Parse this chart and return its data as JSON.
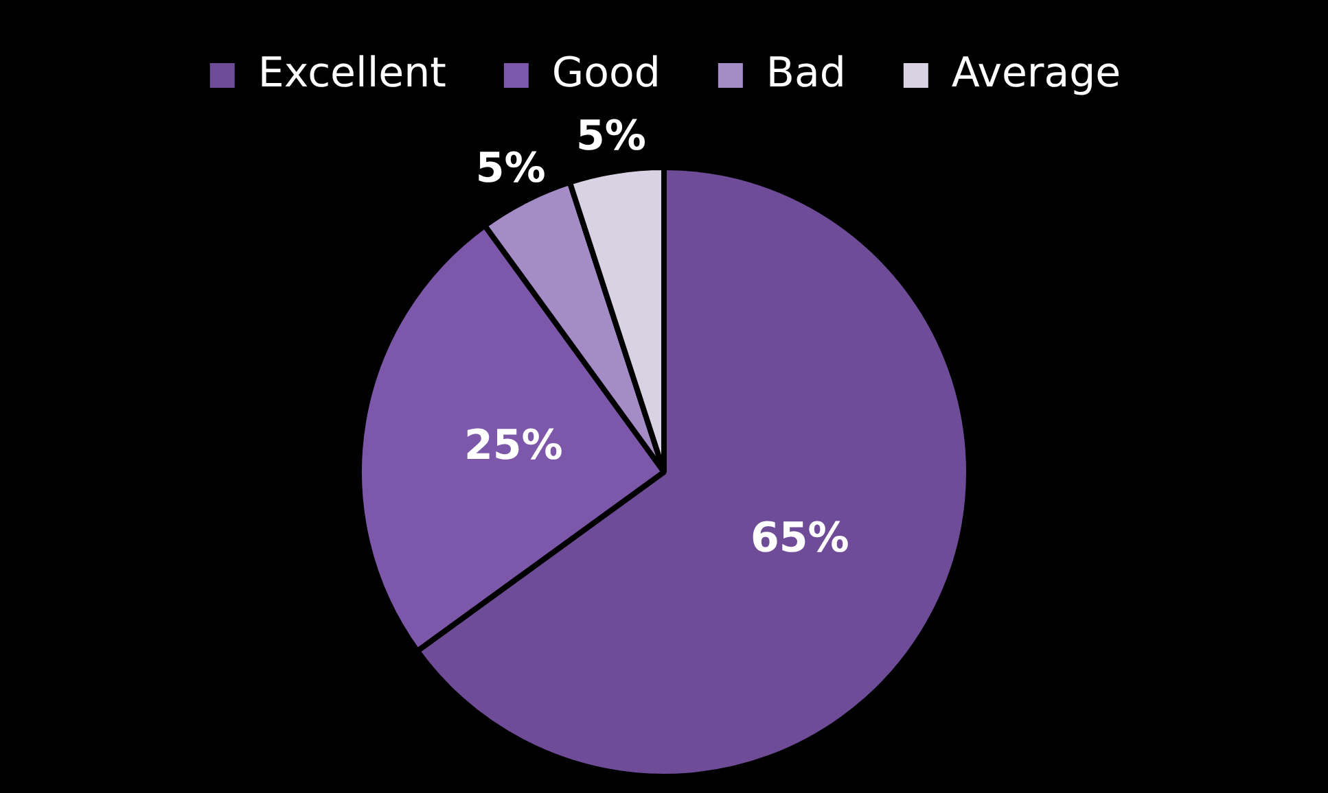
{
  "chart_data": {
    "type": "pie",
    "categories": [
      "Excellent",
      "Good",
      "Bad",
      "Average"
    ],
    "values": [
      65,
      25,
      5,
      5
    ],
    "colors": [
      "#6e4c98",
      "#7d57aa",
      "#a48cc6",
      "#d9d2e2"
    ],
    "value_labels": [
      "65%",
      "25%",
      "5%",
      "5%"
    ],
    "legend": "top"
  }
}
